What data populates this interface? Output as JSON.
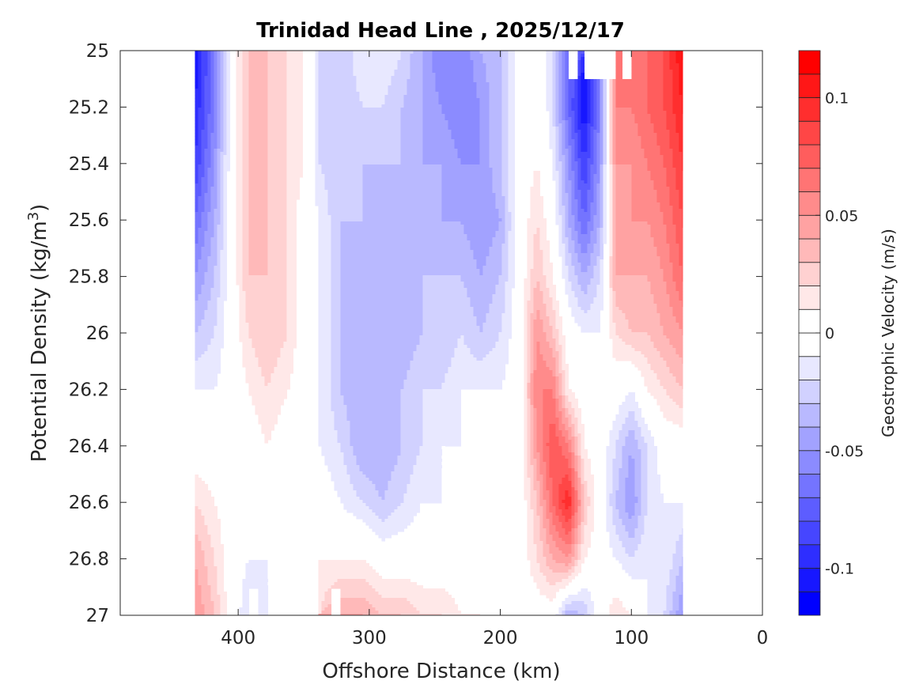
{
  "chart_data": {
    "type": "heatmap",
    "subtype": "filled-contour",
    "title": "Trinidad Head Line , 2025/12/17",
    "xlabel": "Offshore Distance (km)",
    "ylabel_main": "Potential Density (kg/m",
    "ylabel_sup": "3",
    "ylabel_close": ")",
    "xlim": [
      0,
      490
    ],
    "x_reversed": true,
    "ylim": [
      25,
      27
    ],
    "y_reversed": true,
    "xticks": [
      400,
      300,
      200,
      100,
      0
    ],
    "xtick_labels": [
      "400",
      "300",
      "200",
      "100",
      "0"
    ],
    "yticks": [
      25,
      25.2,
      25.4,
      25.6,
      25.8,
      26,
      26.2,
      26.4,
      26.6,
      26.8,
      27
    ],
    "ytick_labels": [
      "25",
      "25.2",
      "25.4",
      "25.6",
      "25.8",
      "26",
      "26.2",
      "26.4",
      "26.6",
      "26.8",
      "27"
    ],
    "colorbar": {
      "label": "Geostrophic Velocity (m/s)",
      "clim": [
        -0.12,
        0.12
      ],
      "levels_step": 0.01,
      "ticks": [
        0.1,
        0.05,
        0,
        -0.05,
        -0.1
      ],
      "tick_labels": [
        "0.1",
        "0.05",
        "0",
        "-0.05",
        "-0.1"
      ],
      "positive_color": "#ff0000",
      "negative_color": "#0000ff",
      "zero_color": "#ffffff"
    },
    "grid_distance_km": [
      433,
      418,
      405,
      392,
      378,
      362,
      350,
      338,
      322,
      305,
      290,
      275,
      260,
      245,
      230,
      215,
      200,
      185,
      172,
      160,
      148,
      136,
      124,
      112,
      100,
      88,
      75,
      61
    ],
    "grid_density": [
      25.0,
      25.2,
      25.4,
      25.6,
      25.8,
      26.0,
      26.2,
      26.4,
      26.6,
      26.8,
      27.0
    ],
    "velocity": [
      [
        -0.11,
        -0.06,
        0.0,
        0.03,
        0.03,
        0.02,
        0.01,
        -0.02,
        -0.03,
        -0.01,
        -0.01,
        -0.02,
        -0.04,
        -0.06,
        -0.06,
        -0.04,
        -0.03,
        0.0,
        0.0,
        -0.02,
        -0.07,
        null,
        null,
        null,
        0.06,
        0.07,
        0.08,
        0.11
      ],
      [
        -0.1,
        -0.06,
        0.0,
        0.03,
        0.03,
        0.02,
        0.01,
        -0.02,
        -0.03,
        -0.02,
        -0.02,
        -0.03,
        -0.04,
        -0.05,
        -0.06,
        -0.05,
        -0.03,
        0.0,
        0.01,
        -0.02,
        -0.07,
        -0.11,
        -0.06,
        0.06,
        0.06,
        0.07,
        0.08,
        0.1
      ],
      [
        -0.09,
        -0.05,
        0.0,
        0.03,
        0.03,
        0.02,
        0.01,
        -0.02,
        -0.03,
        -0.03,
        -0.03,
        -0.03,
        -0.04,
        -0.04,
        -0.05,
        -0.05,
        -0.03,
        0.0,
        0.01,
        -0.01,
        -0.05,
        -0.09,
        -0.05,
        0.05,
        0.05,
        0.06,
        0.07,
        0.09
      ],
      [
        -0.07,
        -0.04,
        0.0,
        0.03,
        0.03,
        0.02,
        0.0,
        -0.01,
        -0.03,
        -0.03,
        -0.04,
        -0.04,
        -0.04,
        -0.04,
        -0.04,
        -0.05,
        -0.04,
        0.0,
        0.02,
        0.0,
        -0.04,
        -0.07,
        -0.04,
        0.04,
        0.05,
        0.05,
        0.06,
        0.08
      ],
      [
        -0.05,
        -0.03,
        0.0,
        0.03,
        0.03,
        0.02,
        0.0,
        -0.01,
        -0.03,
        -0.04,
        -0.04,
        -0.04,
        -0.03,
        -0.03,
        -0.03,
        -0.04,
        -0.03,
        0.0,
        0.03,
        0.01,
        -0.02,
        -0.04,
        -0.02,
        0.04,
        0.04,
        0.04,
        0.05,
        0.07
      ],
      [
        -0.03,
        -0.02,
        0.0,
        0.02,
        0.03,
        0.02,
        0.0,
        -0.01,
        -0.03,
        -0.04,
        -0.04,
        -0.04,
        -0.03,
        -0.03,
        -0.02,
        -0.03,
        -0.02,
        0.0,
        0.05,
        0.03,
        0.0,
        -0.01,
        -0.01,
        0.02,
        0.03,
        0.03,
        0.04,
        0.05
      ],
      [
        -0.01,
        -0.01,
        0.0,
        0.01,
        0.02,
        0.01,
        0.0,
        -0.01,
        -0.03,
        -0.04,
        -0.04,
        -0.03,
        -0.02,
        -0.02,
        -0.01,
        -0.01,
        -0.01,
        0.0,
        0.06,
        0.06,
        0.01,
        0.0,
        0.0,
        0.0,
        -0.01,
        0.01,
        0.02,
        0.03
      ],
      [
        0.0,
        0.0,
        0.0,
        0.0,
        0.01,
        0.0,
        0.0,
        -0.01,
        -0.02,
        -0.04,
        -0.04,
        -0.03,
        -0.02,
        -0.01,
        -0.01,
        0.0,
        0.0,
        0.0,
        0.05,
        0.08,
        0.06,
        0.01,
        0.0,
        -0.02,
        -0.04,
        -0.02,
        0.0,
        0.0
      ],
      [
        0.02,
        0.01,
        0.0,
        0.0,
        0.0,
        0.0,
        0.0,
        0.0,
        -0.01,
        -0.02,
        -0.03,
        -0.02,
        -0.01,
        -0.01,
        -0.01,
        -0.01,
        0.0,
        0.0,
        0.03,
        0.07,
        0.1,
        0.03,
        0.0,
        -0.03,
        -0.05,
        -0.02,
        -0.01,
        -0.01
      ],
      [
        0.04,
        0.02,
        0.0,
        -0.01,
        -0.01,
        -0.01,
        0.0,
        0.01,
        0.01,
        0.01,
        0.0,
        0.0,
        0.0,
        0.0,
        0.0,
        0.0,
        0.0,
        0.0,
        0.02,
        0.04,
        0.05,
        0.01,
        0.0,
        -0.01,
        -0.02,
        -0.01,
        -0.01,
        -0.03
      ],
      [
        0.05,
        0.03,
        0.0,
        -0.02,
        null,
        null,
        null,
        null,
        0.04,
        0.04,
        0.03,
        0.03,
        0.02,
        0.02,
        0.01,
        0.01,
        0.0,
        0.0,
        0.0,
        0.0,
        -0.04,
        -0.03,
        0.0,
        0.02,
        0.01,
        -0.01,
        -0.02,
        -0.05
      ]
    ]
  }
}
